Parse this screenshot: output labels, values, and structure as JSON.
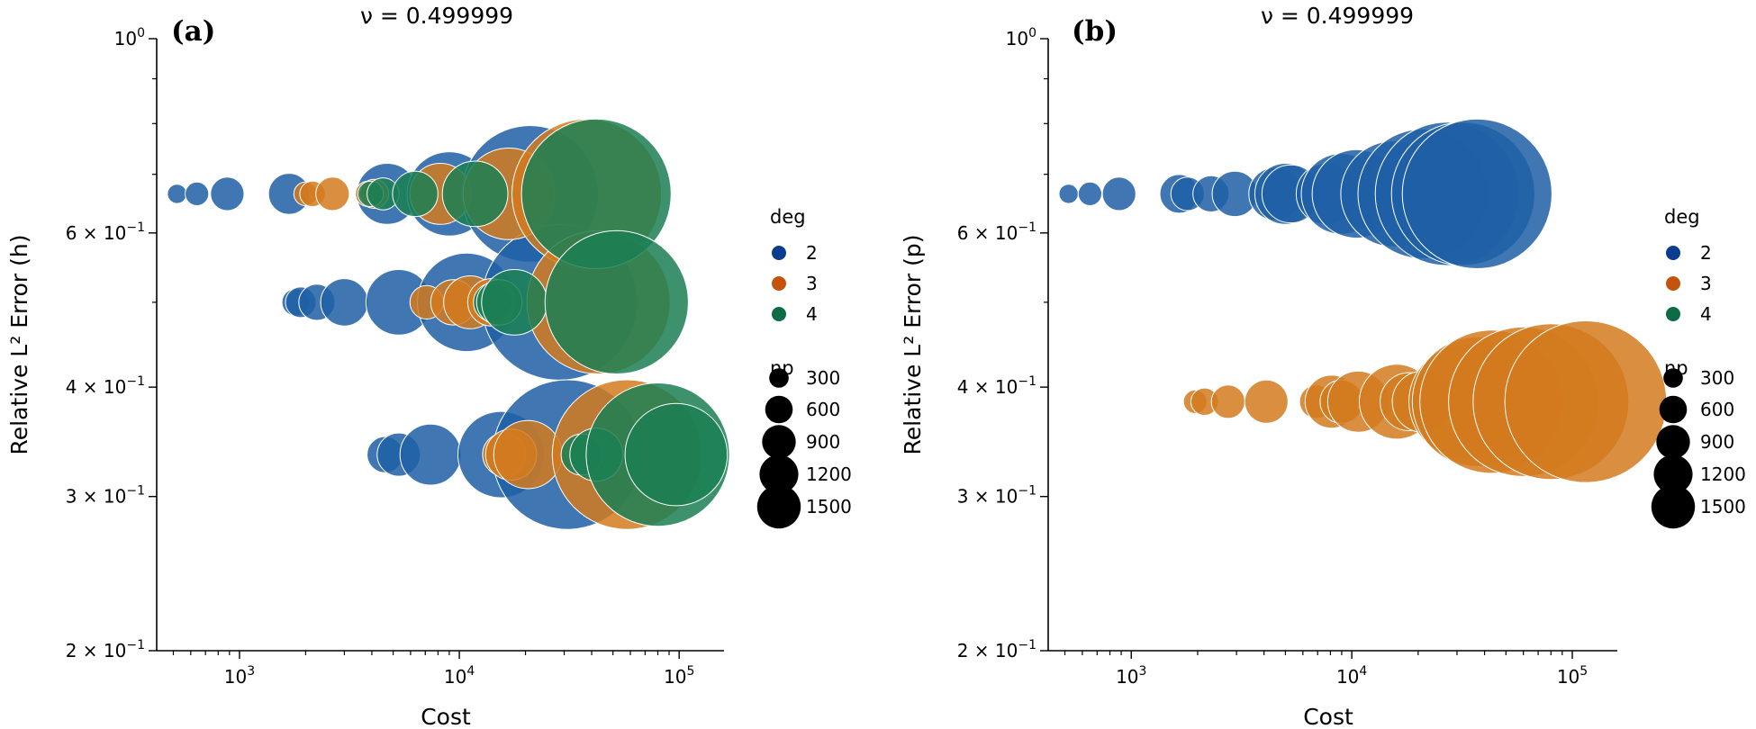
{
  "chart_data": [
    {
      "type": "scatter",
      "panel_label": "(a)",
      "title": "ν = 0.499999",
      "xlabel": "Cost",
      "ylabel": "Relative L² Error (h)",
      "x_scale": "log",
      "y_scale": "log",
      "xlim": [
        420,
        160000
      ],
      "ylim": [
        0.2,
        1.0
      ],
      "x_ticks": [
        {
          "value": 1000,
          "base": "10",
          "exp": "3"
        },
        {
          "value": 10000,
          "base": "10",
          "exp": "4"
        },
        {
          "value": 100000,
          "base": "10",
          "exp": "5"
        }
      ],
      "y_ticks": [
        {
          "value": 1.0,
          "mant": "",
          "base": "10",
          "exp": "0"
        },
        {
          "value": 0.6,
          "mant": "6 × ",
          "base": "10",
          "exp": "−1"
        },
        {
          "value": 0.4,
          "mant": "4 × ",
          "base": "10",
          "exp": "−1"
        },
        {
          "value": 0.3,
          "mant": "3 × ",
          "base": "10",
          "exp": "−1"
        },
        {
          "value": 0.2,
          "mant": "2 × ",
          "base": "10",
          "exp": "−1"
        }
      ],
      "legend": {
        "position": "right",
        "hue_title": "deg",
        "hue_entries": [
          {
            "label": "2",
            "color": "#0a3d8f"
          },
          {
            "label": "3",
            "color": "#c4540c"
          },
          {
            "label": "4",
            "color": "#0d6b45"
          }
        ],
        "size_title": "np",
        "size_entries": [
          "300",
          "600",
          "900",
          "1200",
          "1500"
        ],
        "size_values": [
          300,
          600,
          900,
          1200,
          1500
        ]
      },
      "series": [
        {
          "name": "2",
          "color": "#1f5fa6",
          "points": [
            {
              "x": 520,
              "y": 0.665,
              "np": 20
            },
            {
              "x": 640,
              "y": 0.665,
              "np": 30
            },
            {
              "x": 880,
              "y": 0.665,
              "np": 60
            },
            {
              "x": 1680,
              "y": 0.665,
              "np": 90
            },
            {
              "x": 4700,
              "y": 0.665,
              "np": 200
            },
            {
              "x": 9000,
              "y": 0.665,
              "np": 380
            },
            {
              "x": 21000,
              "y": 0.665,
              "np": 1000
            },
            {
              "x": 1800,
              "y": 0.5,
              "np": 40
            },
            {
              "x": 1900,
              "y": 0.5,
              "np": 50
            },
            {
              "x": 2250,
              "y": 0.5,
              "np": 70
            },
            {
              "x": 3000,
              "y": 0.5,
              "np": 120
            },
            {
              "x": 5300,
              "y": 0.5,
              "np": 230
            },
            {
              "x": 10800,
              "y": 0.5,
              "np": 520
            },
            {
              "x": 28500,
              "y": 0.5,
              "np": 1300
            },
            {
              "x": 4600,
              "y": 0.335,
              "np": 70
            },
            {
              "x": 5300,
              "y": 0.335,
              "np": 100
            },
            {
              "x": 7400,
              "y": 0.335,
              "np": 200
            },
            {
              "x": 15500,
              "y": 0.335,
              "np": 400
            },
            {
              "x": 31000,
              "y": 0.335,
              "np": 1200
            }
          ]
        },
        {
          "name": "3",
          "color": "#d27a1e",
          "points": [
            {
              "x": 2000,
              "y": 0.665,
              "np": 30
            },
            {
              "x": 2150,
              "y": 0.665,
              "np": 35
            },
            {
              "x": 2650,
              "y": 0.665,
              "np": 60
            },
            {
              "x": 3850,
              "y": 0.665,
              "np": 35
            },
            {
              "x": 4100,
              "y": 0.665,
              "np": 45
            },
            {
              "x": 8200,
              "y": 0.665,
              "np": 200
            },
            {
              "x": 16800,
              "y": 0.665,
              "np": 450
            },
            {
              "x": 38000,
              "y": 0.665,
              "np": 1200
            },
            {
              "x": 7100,
              "y": 0.5,
              "np": 60
            },
            {
              "x": 9400,
              "y": 0.5,
              "np": 110
            },
            {
              "x": 11200,
              "y": 0.5,
              "np": 150
            },
            {
              "x": 14000,
              "y": 0.5,
              "np": 120
            },
            {
              "x": 43000,
              "y": 0.5,
              "np": 1100
            },
            {
              "x": 16000,
              "y": 0.335,
              "np": 100
            },
            {
              "x": 17200,
              "y": 0.335,
              "np": 140
            },
            {
              "x": 20500,
              "y": 0.335,
              "np": 250
            },
            {
              "x": 58000,
              "y": 0.335,
              "np": 1200
            }
          ]
        },
        {
          "name": "4",
          "color": "#1b7f53",
          "points": [
            {
              "x": 3950,
              "y": 0.665,
              "np": 35
            },
            {
              "x": 4500,
              "y": 0.665,
              "np": 55
            },
            {
              "x": 6300,
              "y": 0.665,
              "np": 110
            },
            {
              "x": 11800,
              "y": 0.665,
              "np": 230
            },
            {
              "x": 42000,
              "y": 0.665,
              "np": 1200
            },
            {
              "x": 14200,
              "y": 0.5,
              "np": 80
            },
            {
              "x": 15200,
              "y": 0.5,
              "np": 110
            },
            {
              "x": 17800,
              "y": 0.5,
              "np": 230
            },
            {
              "x": 52000,
              "y": 0.5,
              "np": 1100
            },
            {
              "x": 36000,
              "y": 0.335,
              "np": 90
            },
            {
              "x": 42000,
              "y": 0.335,
              "np": 150
            },
            {
              "x": 80000,
              "y": 0.335,
              "np": 1100
            },
            {
              "x": 97000,
              "y": 0.335,
              "np": 560
            }
          ]
        }
      ]
    },
    {
      "type": "scatter",
      "panel_label": "(b)",
      "title": "ν = 0.499999",
      "xlabel": "Cost",
      "ylabel": "Relative L² Error (p)",
      "x_scale": "log",
      "y_scale": "log",
      "xlim": [
        420,
        160000
      ],
      "ylim": [
        0.2,
        1.0
      ],
      "x_ticks": [
        {
          "value": 1000,
          "base": "10",
          "exp": "3"
        },
        {
          "value": 10000,
          "base": "10",
          "exp": "4"
        },
        {
          "value": 100000,
          "base": "10",
          "exp": "5"
        }
      ],
      "y_ticks": [
        {
          "value": 1.0,
          "mant": "",
          "base": "10",
          "exp": "0"
        },
        {
          "value": 0.6,
          "mant": "6 × ",
          "base": "10",
          "exp": "−1"
        },
        {
          "value": 0.4,
          "mant": "4 × ",
          "base": "10",
          "exp": "−1"
        },
        {
          "value": 0.3,
          "mant": "3 × ",
          "base": "10",
          "exp": "−1"
        },
        {
          "value": 0.2,
          "mant": "2 × ",
          "base": "10",
          "exp": "−1"
        }
      ],
      "legend": {
        "position": "right",
        "hue_title": "deg",
        "hue_entries": [
          {
            "label": "2",
            "color": "#0a3d8f"
          },
          {
            "label": "3",
            "color": "#c4540c"
          },
          {
            "label": "4",
            "color": "#0d6b45"
          }
        ],
        "size_title": "np",
        "size_entries": [
          "300",
          "600",
          "900",
          "1200",
          "1500"
        ],
        "size_values": [
          300,
          600,
          900,
          1200,
          1500
        ]
      },
      "series": [
        {
          "name": "2",
          "color": "#1f5fa6",
          "points": [
            {
              "x": 520,
              "y": 0.665,
              "np": 20
            },
            {
              "x": 650,
              "y": 0.665,
              "np": 30
            },
            {
              "x": 880,
              "y": 0.665,
              "np": 60
            },
            {
              "x": 1650,
              "y": 0.665,
              "np": 80
            },
            {
              "x": 1800,
              "y": 0.665,
              "np": 60
            },
            {
              "x": 2300,
              "y": 0.665,
              "np": 70
            },
            {
              "x": 2950,
              "y": 0.665,
              "np": 110
            },
            {
              "x": 4500,
              "y": 0.665,
              "np": 150
            },
            {
              "x": 5000,
              "y": 0.665,
              "np": 200
            },
            {
              "x": 5300,
              "y": 0.665,
              "np": 180
            },
            {
              "x": 7700,
              "y": 0.665,
              "np": 200
            },
            {
              "x": 9000,
              "y": 0.665,
              "np": 350
            },
            {
              "x": 10500,
              "y": 0.665,
              "np": 420
            },
            {
              "x": 15500,
              "y": 0.665,
              "np": 600
            },
            {
              "x": 21000,
              "y": 0.665,
              "np": 900
            },
            {
              "x": 27000,
              "y": 0.665,
              "np": 1100
            },
            {
              "x": 32000,
              "y": 0.665,
              "np": 1100
            },
            {
              "x": 37000,
              "y": 0.665,
              "np": 1200
            }
          ]
        },
        {
          "name": "3",
          "color": "#d27a1e",
          "points": [
            {
              "x": 1950,
              "y": 0.385,
              "np": 30
            },
            {
              "x": 2150,
              "y": 0.385,
              "np": 40
            },
            {
              "x": 2750,
              "y": 0.385,
              "np": 60
            },
            {
              "x": 4100,
              "y": 0.385,
              "np": 100
            },
            {
              "x": 6900,
              "y": 0.385,
              "np": 60
            },
            {
              "x": 8100,
              "y": 0.385,
              "np": 150
            },
            {
              "x": 9000,
              "y": 0.385,
              "np": 100
            },
            {
              "x": 10700,
              "y": 0.385,
              "np": 200
            },
            {
              "x": 16000,
              "y": 0.385,
              "np": 300
            },
            {
              "x": 18200,
              "y": 0.385,
              "np": 180
            },
            {
              "x": 21000,
              "y": 0.385,
              "np": 200
            },
            {
              "x": 33000,
              "y": 0.385,
              "np": 700
            },
            {
              "x": 37000,
              "y": 0.385,
              "np": 900
            },
            {
              "x": 43000,
              "y": 0.385,
              "np": 1100
            },
            {
              "x": 60000,
              "y": 0.385,
              "np": 1200
            },
            {
              "x": 80000,
              "y": 0.385,
              "np": 1300
            },
            {
              "x": 115000,
              "y": 0.385,
              "np": 1400
            }
          ]
        }
      ]
    }
  ]
}
